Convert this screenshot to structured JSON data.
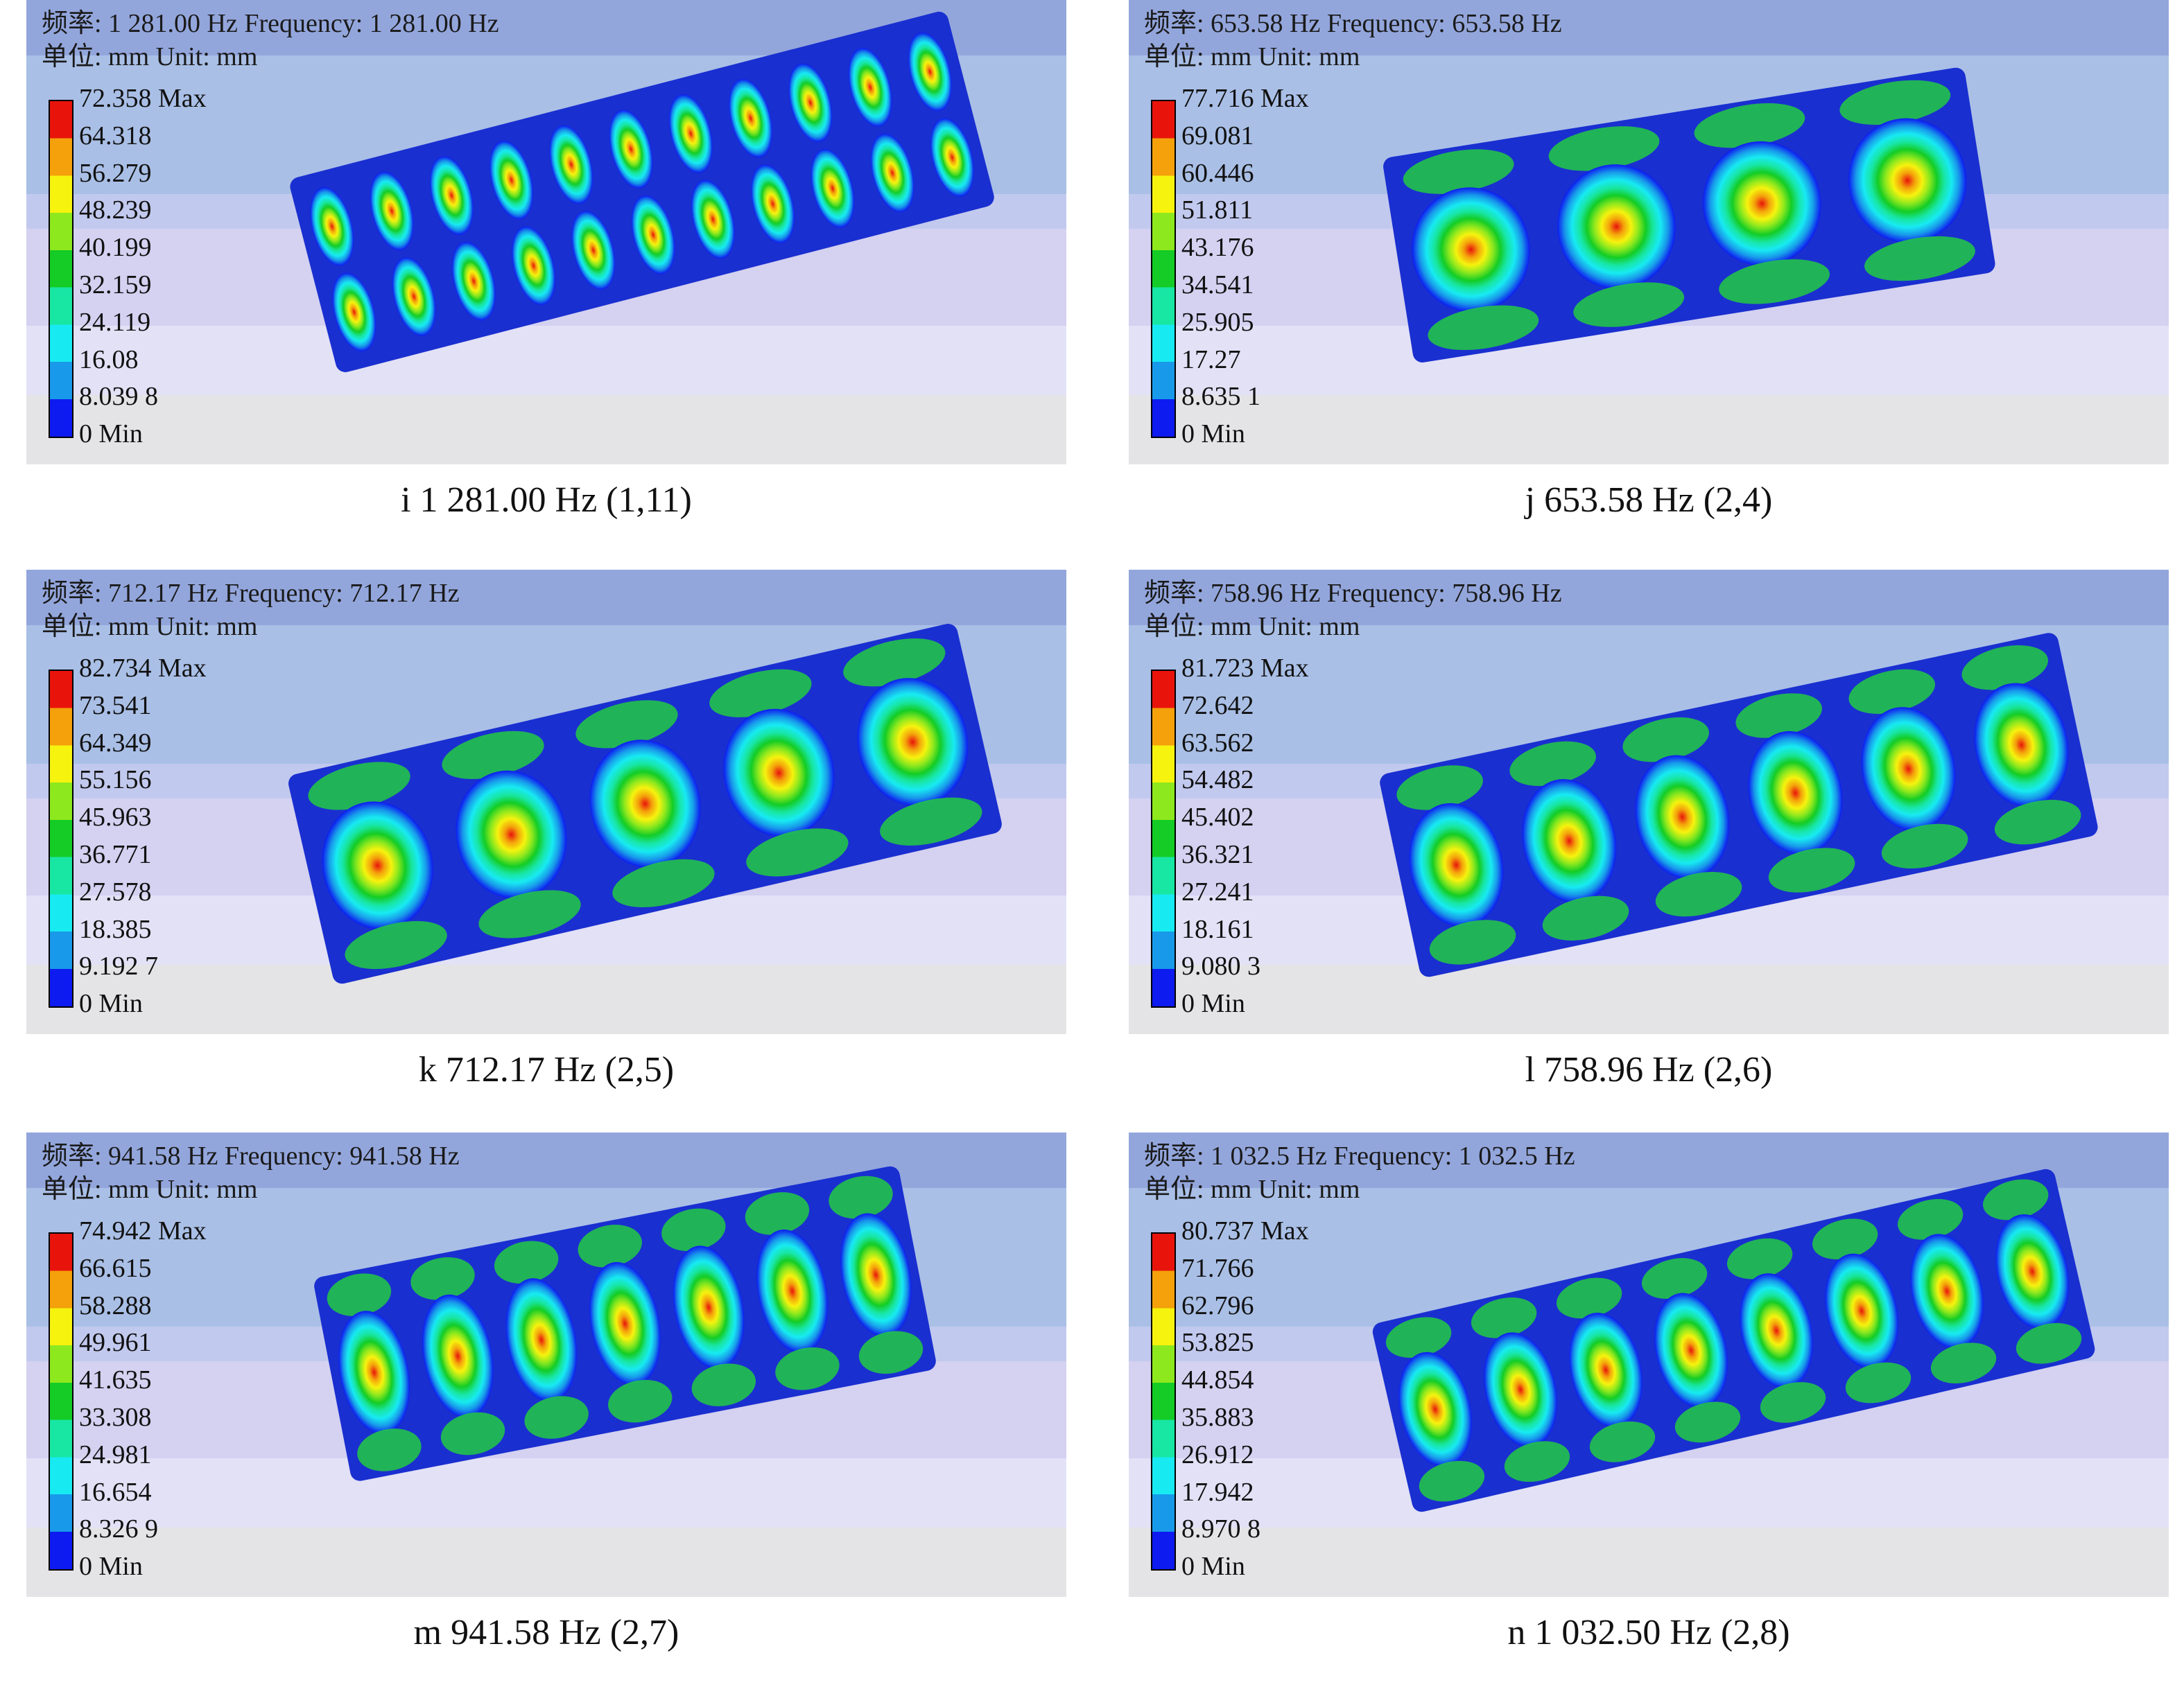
{
  "figures": [
    {
      "frequency_line": "频率: 1 281.00 Hz Frequency: 1 281.00 Hz",
      "unit_line": "单位: mm Unit: mm",
      "legend": [
        "72.358 Max",
        "64.318",
        "56.279",
        "48.239",
        "40.199",
        "32.159",
        "24.119",
        "16.08",
        "8.039 8",
        "0 Min"
      ],
      "caption": "i 1 281.00 Hz (1,11)",
      "mode": {
        "m": 1,
        "n": 11
      }
    },
    {
      "frequency_line": "频率: 653.58 Hz Frequency: 653.58 Hz",
      "unit_line": "单位: mm Unit: mm",
      "legend": [
        "77.716 Max",
        "69.081",
        "60.446",
        "51.811",
        "43.176",
        "34.541",
        "25.905",
        "17.27",
        "8.635 1",
        "0 Min"
      ],
      "caption": "j 653.58 Hz (2,4)",
      "mode": {
        "m": 2,
        "n": 4
      }
    },
    {
      "frequency_line": "频率: 712.17 Hz Frequency: 712.17 Hz",
      "unit_line": "单位: mm Unit: mm",
      "legend": [
        "82.734 Max",
        "73.541",
        "64.349",
        "55.156",
        "45.963",
        "36.771",
        "27.578",
        "18.385",
        "9.192 7",
        "0 Min"
      ],
      "caption": "k 712.17 Hz (2,5)",
      "mode": {
        "m": 2,
        "n": 5
      }
    },
    {
      "frequency_line": "频率: 758.96 Hz Frequency: 758.96 Hz",
      "unit_line": "单位: mm Unit: mm",
      "legend": [
        "81.723 Max",
        "72.642",
        "63.562",
        "54.482",
        "45.402",
        "36.321",
        "27.241",
        "18.161",
        "9.080 3",
        "0 Min"
      ],
      "caption": "l 758.96 Hz (2,6)",
      "mode": {
        "m": 2,
        "n": 6
      }
    },
    {
      "frequency_line": "频率: 941.58 Hz Frequency: 941.58 Hz",
      "unit_line": "单位: mm Unit: mm",
      "legend": [
        "74.942 Max",
        "66.615",
        "58.288",
        "49.961",
        "41.635",
        "33.308",
        "24.981",
        "16.654",
        "8.326 9",
        "0 Min"
      ],
      "caption": "m 941.58 Hz (2,7)",
      "mode": {
        "m": 2,
        "n": 7
      }
    },
    {
      "frequency_line": "频率: 1 032.5 Hz Frequency: 1 032.5 Hz",
      "unit_line": "单位: mm Unit: mm",
      "legend": [
        "80.737 Max",
        "71.766",
        "62.796",
        "53.825",
        "44.854",
        "35.883",
        "26.912",
        "17.942",
        "8.970 8",
        "0 Min"
      ],
      "caption": "n 1 032.50 Hz (2,8)",
      "mode": {
        "m": 2,
        "n": 8
      }
    }
  ],
  "colors": {
    "plate": "#1a2fd0",
    "contour": [
      "#0d1bf0",
      "#1899ea",
      "#18eaf2",
      "#18e6a3",
      "#14cc25",
      "#8de81e",
      "#f6f30e",
      "#f4a10b",
      "#e8140c"
    ]
  }
}
